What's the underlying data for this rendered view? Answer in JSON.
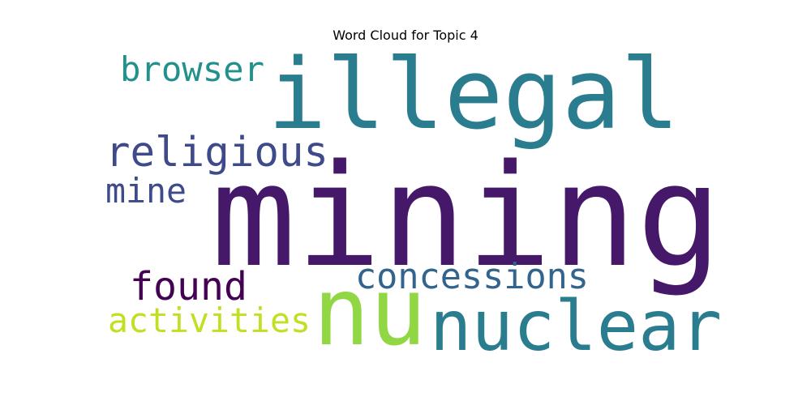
{
  "chart_data": {
    "type": "wordcloud",
    "title": "Word Cloud for Topic 4",
    "words": [
      {
        "text": "mining",
        "color": "#46186a"
      },
      {
        "text": "illegal",
        "color": "#2a7d8e"
      },
      {
        "text": "nu",
        "color": "#90d743"
      },
      {
        "text": "nuclear",
        "color": "#2a7d8e"
      },
      {
        "text": "religious",
        "color": "#3e4a89"
      },
      {
        "text": "browser",
        "color": "#22908c"
      },
      {
        "text": "concessions",
        "color": "#32648e"
      },
      {
        "text": "found",
        "color": "#440154"
      },
      {
        "text": "activities",
        "color": "#c2df23"
      },
      {
        "text": "mine",
        "color": "#3e4a89"
      }
    ]
  }
}
